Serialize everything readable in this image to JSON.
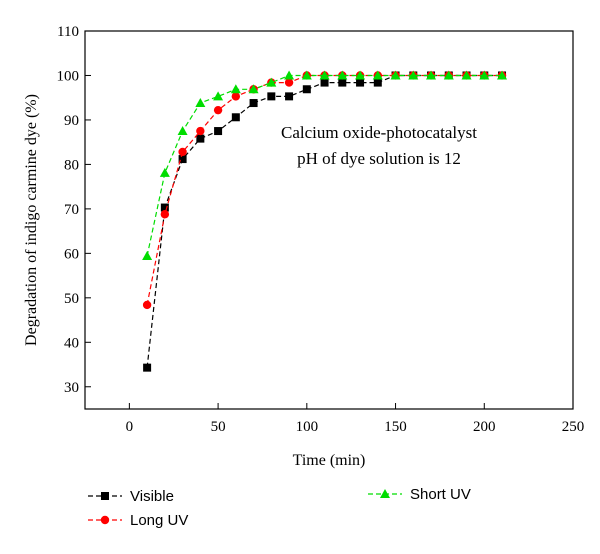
{
  "chart_data": {
    "type": "line",
    "title": "",
    "xlabel": "Time (min)",
    "ylabel": "Degradation of indigo carmine dye (%)",
    "xlim": [
      -25,
      250
    ],
    "ylim": [
      25,
      110
    ],
    "xticks": [
      0,
      50,
      100,
      150,
      200,
      250
    ],
    "yticks": [
      30,
      40,
      50,
      60,
      70,
      80,
      90,
      100,
      110
    ],
    "grid": false,
    "legend_position": "bottom",
    "annotations": [
      "Calcium oxide-photocatalyst",
      "pH of dye solution is 12"
    ],
    "series": [
      {
        "name": "Visible",
        "color": "#000000",
        "marker": "square",
        "line_style": "dashed",
        "x": [
          10,
          20,
          30,
          40,
          50,
          60,
          70,
          80,
          90,
          100,
          110,
          120,
          130,
          140,
          150,
          160,
          170,
          180,
          190,
          200,
          210
        ],
        "y": [
          34.3,
          70.3,
          81.2,
          85.8,
          87.5,
          90.6,
          93.8,
          95.3,
          95.3,
          96.9,
          98.4,
          98.4,
          98.4,
          98.4,
          100,
          100,
          100,
          100,
          100,
          100,
          100
        ]
      },
      {
        "name": "Long UV",
        "color": "#ff0000",
        "marker": "circle",
        "line_style": "dashed",
        "x": [
          10,
          20,
          30,
          40,
          50,
          60,
          70,
          80,
          90,
          100,
          110,
          120,
          130,
          140,
          150,
          160,
          170,
          180,
          190,
          200,
          210
        ],
        "y": [
          48.4,
          68.8,
          82.8,
          87.5,
          92.2,
          95.3,
          96.9,
          98.4,
          98.4,
          100,
          100,
          100,
          100,
          100,
          100,
          100,
          100,
          100,
          100,
          100,
          100
        ]
      },
      {
        "name": "Short UV",
        "color": "#00dd00",
        "marker": "triangle",
        "line_style": "dashed",
        "x": [
          10,
          20,
          30,
          40,
          50,
          60,
          70,
          80,
          90,
          100,
          110,
          120,
          130,
          140,
          150,
          160,
          170,
          180,
          190,
          200,
          210
        ],
        "y": [
          59.4,
          78.1,
          87.5,
          93.8,
          95.3,
          96.9,
          96.9,
          98.4,
          100,
          100,
          100,
          100,
          100,
          100,
          100,
          100,
          100,
          100,
          100,
          100,
          100
        ]
      }
    ]
  }
}
